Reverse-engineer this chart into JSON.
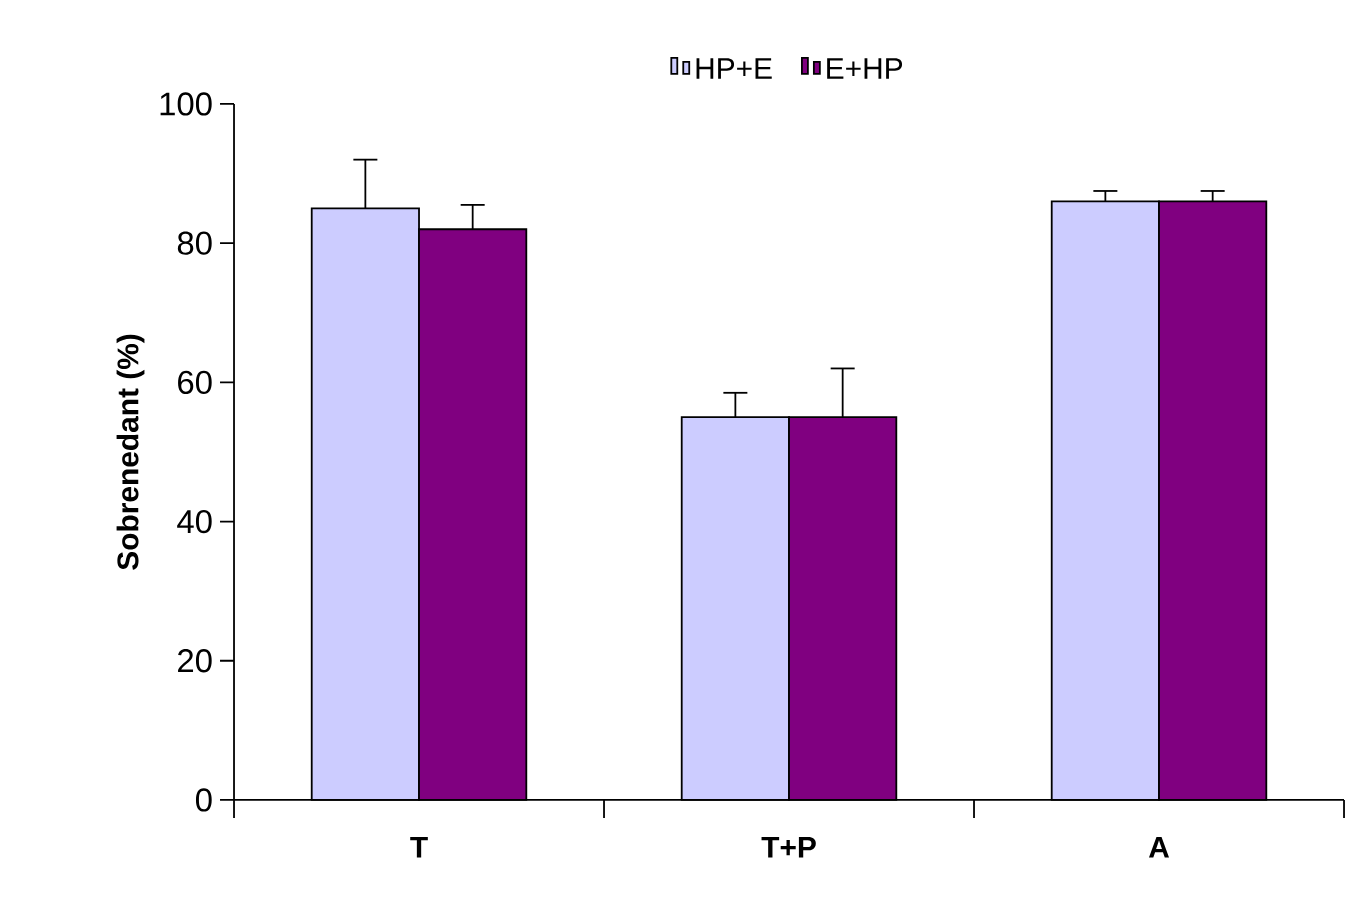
{
  "chart_data": {
    "type": "bar",
    "ylabel": "Sobrenedant (%)",
    "categories": [
      "T",
      "T+P",
      "A"
    ],
    "series": [
      {
        "name": "HP+E",
        "color": "#ccccff",
        "values": [
          85,
          55,
          86
        ],
        "errors": [
          7,
          3.5,
          1.5
        ]
      },
      {
        "name": "E+HP",
        "color": "#800080",
        "values": [
          82,
          55,
          86
        ],
        "errors": [
          3.5,
          7,
          1.5
        ]
      }
    ],
    "ylim": [
      0,
      100
    ],
    "yticks": [
      0,
      20,
      40,
      60,
      80,
      100
    ],
    "legend": "top"
  }
}
